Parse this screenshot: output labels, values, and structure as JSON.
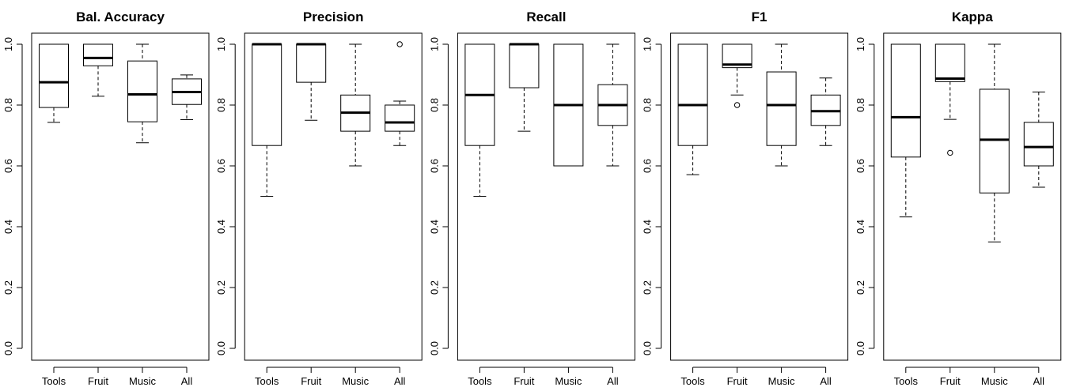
{
  "chart_data": [
    {
      "type": "boxplot",
      "title": "Bal. Accuracy",
      "categories": [
        "Tools",
        "Fruit",
        "Music",
        "All"
      ],
      "ylim": [
        0,
        1
      ],
      "yticks": [
        "0.0",
        "0.2",
        "0.4",
        "0.6",
        "0.8",
        "1.0"
      ],
      "boxes": [
        {
          "whisker_low": 0.743,
          "q1": 0.792,
          "median": 0.875,
          "q3": 1.0,
          "whisker_high": 1.0,
          "outliers": []
        },
        {
          "whisker_low": 0.829,
          "q1": 0.929,
          "median": 0.955,
          "q3": 1.0,
          "whisker_high": 1.0,
          "outliers": []
        },
        {
          "whisker_low": 0.676,
          "q1": 0.745,
          "median": 0.835,
          "q3": 0.945,
          "whisker_high": 1.0,
          "outliers": []
        },
        {
          "whisker_low": 0.752,
          "q1": 0.802,
          "median": 0.843,
          "q3": 0.886,
          "whisker_high": 0.899,
          "outliers": []
        }
      ]
    },
    {
      "type": "boxplot",
      "title": "Precision",
      "categories": [
        "Tools",
        "Fruit",
        "Music",
        "All"
      ],
      "ylim": [
        0,
        1
      ],
      "yticks": [
        "0.0",
        "0.2",
        "0.4",
        "0.6",
        "0.8",
        "1.0"
      ],
      "boxes": [
        {
          "whisker_low": 0.5,
          "q1": 0.667,
          "median": 1.0,
          "q3": 1.0,
          "whisker_high": 1.0,
          "outliers": []
        },
        {
          "whisker_low": 0.75,
          "q1": 0.875,
          "median": 1.0,
          "q3": 1.0,
          "whisker_high": 1.0,
          "outliers": []
        },
        {
          "whisker_low": 0.6,
          "q1": 0.714,
          "median": 0.775,
          "q3": 0.833,
          "whisker_high": 1.0,
          "outliers": []
        },
        {
          "whisker_low": 0.667,
          "q1": 0.714,
          "median": 0.743,
          "q3": 0.8,
          "whisker_high": 0.813,
          "outliers": [
            1.0
          ]
        }
      ]
    },
    {
      "type": "boxplot",
      "title": "Recall",
      "categories": [
        "Tools",
        "Fruit",
        "Music",
        "All"
      ],
      "ylim": [
        0,
        1
      ],
      "yticks": [
        "0.0",
        "0.2",
        "0.4",
        "0.6",
        "0.8",
        "1.0"
      ],
      "boxes": [
        {
          "whisker_low": 0.5,
          "q1": 0.667,
          "median": 0.833,
          "q3": 1.0,
          "whisker_high": 1.0,
          "outliers": []
        },
        {
          "whisker_low": 0.714,
          "q1": 0.857,
          "median": 1.0,
          "q3": 1.0,
          "whisker_high": 1.0,
          "outliers": []
        },
        {
          "whisker_low": 0.6,
          "q1": 0.6,
          "median": 0.8,
          "q3": 1.0,
          "whisker_high": 1.0,
          "outliers": []
        },
        {
          "whisker_low": 0.6,
          "q1": 0.733,
          "median": 0.8,
          "q3": 0.867,
          "whisker_high": 1.0,
          "outliers": []
        }
      ]
    },
    {
      "type": "boxplot",
      "title": "F1",
      "categories": [
        "Tools",
        "Fruit",
        "Music",
        "All"
      ],
      "ylim": [
        0,
        1
      ],
      "yticks": [
        "0.0",
        "0.2",
        "0.4",
        "0.6",
        "0.8",
        "1.0"
      ],
      "boxes": [
        {
          "whisker_low": 0.571,
          "q1": 0.667,
          "median": 0.8,
          "q3": 1.0,
          "whisker_high": 1.0,
          "outliers": []
        },
        {
          "whisker_low": 0.833,
          "q1": 0.923,
          "median": 0.933,
          "q3": 1.0,
          "whisker_high": 1.0,
          "outliers": [
            0.8
          ]
        },
        {
          "whisker_low": 0.6,
          "q1": 0.667,
          "median": 0.8,
          "q3": 0.909,
          "whisker_high": 1.0,
          "outliers": []
        },
        {
          "whisker_low": 0.667,
          "q1": 0.733,
          "median": 0.78,
          "q3": 0.833,
          "whisker_high": 0.889,
          "outliers": []
        }
      ]
    },
    {
      "type": "boxplot",
      "title": "Kappa",
      "categories": [
        "Tools",
        "Fruit",
        "Music",
        "All"
      ],
      "ylim": [
        0,
        1
      ],
      "yticks": [
        "0.0",
        "0.2",
        "0.4",
        "0.6",
        "0.8",
        "1.0"
      ],
      "boxes": [
        {
          "whisker_low": 0.432,
          "q1": 0.629,
          "median": 0.76,
          "q3": 1.0,
          "whisker_high": 1.0,
          "outliers": []
        },
        {
          "whisker_low": 0.753,
          "q1": 0.877,
          "median": 0.887,
          "q3": 1.0,
          "whisker_high": 1.0,
          "outliers": [
            0.643
          ]
        },
        {
          "whisker_low": 0.35,
          "q1": 0.511,
          "median": 0.686,
          "q3": 0.852,
          "whisker_high": 1.0,
          "outliers": []
        },
        {
          "whisker_low": 0.53,
          "q1": 0.6,
          "median": 0.662,
          "q3": 0.743,
          "whisker_high": 0.843,
          "outliers": []
        }
      ]
    }
  ]
}
